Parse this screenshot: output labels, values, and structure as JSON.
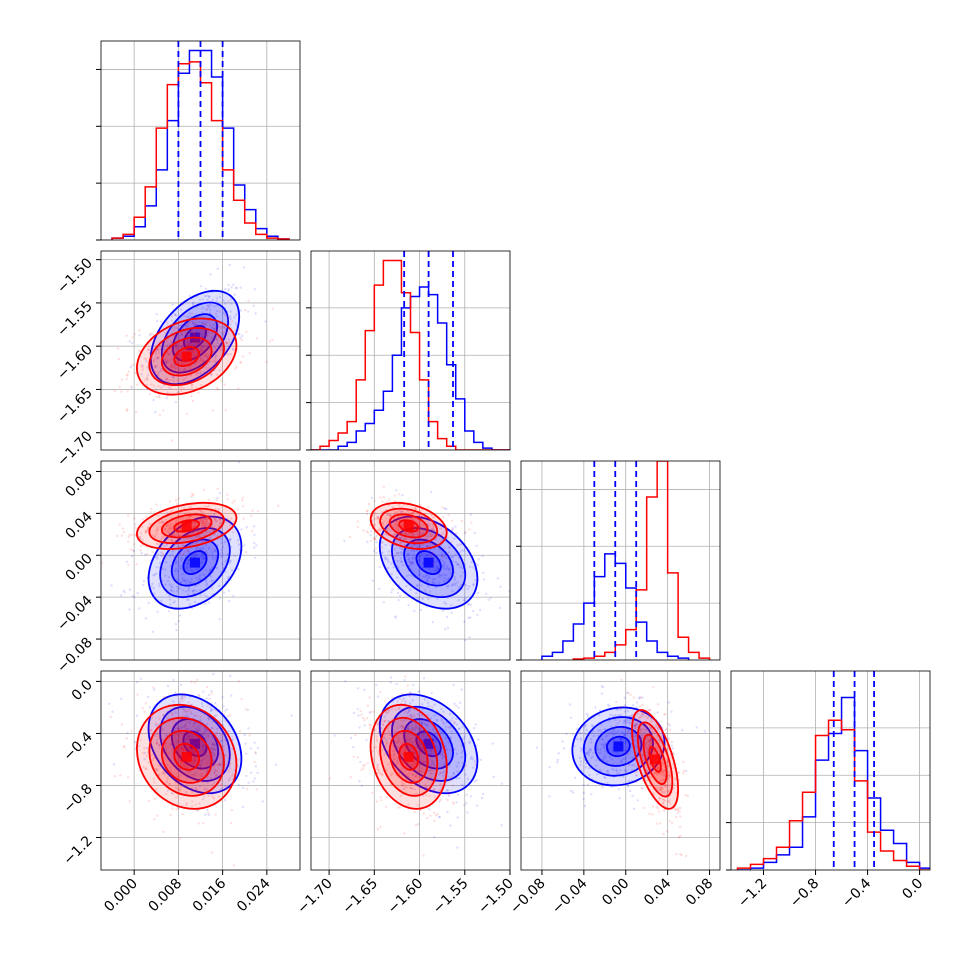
{
  "figure_type": "corner plot",
  "colors": {
    "series_a": "#0000ff",
    "series_b": "#ff0000",
    "grid": "#b0b0b0",
    "frame": "#000000"
  },
  "chart_data": [
    {
      "type": "histogram",
      "param": 0,
      "x_range": [
        -0.006,
        0.03
      ],
      "y_range": [
        0,
        1.05
      ],
      "grid": true,
      "y_ticks": [
        0.0,
        0.3,
        0.6,
        0.9
      ],
      "quantiles": {
        "series": "blue",
        "values": [
          0.008,
          0.012,
          0.016
        ]
      },
      "series": [
        {
          "color": "blue",
          "bins": [
            -0.004,
            -0.002,
            0.0,
            0.002,
            0.004,
            0.006,
            0.008,
            0.01,
            0.012,
            0.014,
            0.016,
            0.018,
            0.02,
            0.022,
            0.024,
            0.026,
            0.028
          ],
          "counts": [
            0.01,
            0.02,
            0.07,
            0.18,
            0.37,
            0.63,
            0.88,
            1.0,
            1.0,
            0.86,
            0.59,
            0.29,
            0.16,
            0.06,
            0.02,
            0.005
          ]
        },
        {
          "color": "red",
          "bins": [
            -0.004,
            -0.002,
            0.0,
            0.002,
            0.004,
            0.006,
            0.008,
            0.01,
            0.012,
            0.014,
            0.016,
            0.018,
            0.02,
            0.022,
            0.024,
            0.026,
            0.028
          ],
          "counts": [
            0.01,
            0.03,
            0.12,
            0.28,
            0.59,
            0.82,
            0.93,
            0.94,
            0.83,
            0.63,
            0.37,
            0.21,
            0.09,
            0.03,
            0.01,
            0.005
          ]
        }
      ]
    },
    {
      "type": "histogram",
      "param": 1,
      "x_range": [
        -1.72,
        -1.5
      ],
      "y_range": [
        0,
        1.05
      ],
      "grid": true,
      "y_ticks": [
        0.0,
        0.25,
        0.5,
        0.75
      ],
      "quantiles": {
        "series": "blue",
        "values": [
          -1.617,
          -1.59,
          -1.563
        ]
      },
      "series": [
        {
          "color": "blue",
          "bins": [
            -1.72,
            -1.71,
            -1.7,
            -1.69,
            -1.68,
            -1.67,
            -1.66,
            -1.65,
            -1.64,
            -1.63,
            -1.62,
            -1.61,
            -1.6,
            -1.59,
            -1.58,
            -1.57,
            -1.56,
            -1.55,
            -1.54,
            -1.53,
            -1.52,
            -1.51,
            -1.5
          ],
          "counts": [
            0.0,
            0.0,
            0.0,
            0.02,
            0.04,
            0.1,
            0.14,
            0.21,
            0.31,
            0.5,
            0.75,
            0.81,
            0.86,
            0.82,
            0.67,
            0.45,
            0.27,
            0.1,
            0.04,
            0.01,
            0.0,
            0.0
          ]
        },
        {
          "color": "red",
          "bins": [
            -1.72,
            -1.71,
            -1.7,
            -1.69,
            -1.68,
            -1.67,
            -1.66,
            -1.65,
            -1.64,
            -1.63,
            -1.62,
            -1.61,
            -1.6,
            -1.59,
            -1.58,
            -1.57,
            -1.56,
            -1.55,
            -1.54,
            -1.53,
            -1.52,
            -1.51,
            -1.5
          ],
          "counts": [
            0.0,
            0.02,
            0.05,
            0.09,
            0.15,
            0.37,
            0.63,
            0.87,
            1.0,
            1.0,
            0.83,
            0.62,
            0.37,
            0.15,
            0.06,
            0.02,
            0.0,
            0.0,
            0.0,
            0.0,
            0.0,
            0.0
          ]
        }
      ]
    },
    {
      "type": "histogram",
      "param": 2,
      "x_range": [
        -0.1,
        0.09
      ],
      "y_range": [
        0,
        1.05
      ],
      "grid": true,
      "y_ticks": [
        0.0,
        0.3,
        0.6,
        0.9
      ],
      "quantiles": {
        "series": "blue",
        "values": [
          -0.03,
          -0.01,
          0.01
        ]
      },
      "series": [
        {
          "color": "blue",
          "bins": [
            -0.08,
            -0.07,
            -0.06,
            -0.05,
            -0.04,
            -0.03,
            -0.02,
            -0.01,
            0.0,
            0.01,
            0.02,
            0.03,
            0.04,
            0.05,
            0.06
          ],
          "counts": [
            0.02,
            0.04,
            0.1,
            0.19,
            0.3,
            0.44,
            0.56,
            0.51,
            0.38,
            0.2,
            0.1,
            0.04,
            0.02,
            0.01
          ]
        },
        {
          "color": "red",
          "bins": [
            -0.05,
            -0.04,
            -0.03,
            -0.02,
            -0.01,
            0.0,
            0.01,
            0.02,
            0.03,
            0.04,
            0.05,
            0.06,
            0.07,
            0.08
          ],
          "counts": [
            0.005,
            0.01,
            0.02,
            0.04,
            0.08,
            0.16,
            0.37,
            0.86,
            1.05,
            0.46,
            0.12,
            0.04,
            0.01
          ]
        }
      ]
    },
    {
      "type": "histogram",
      "param": 3,
      "x_range": [
        -1.45,
        0.08
      ],
      "y_range": [
        0,
        1.05
      ],
      "grid": true,
      "y_ticks": [
        0.0,
        0.25,
        0.5,
        0.75
      ],
      "quantiles": {
        "series": "blue",
        "values": [
          -0.66,
          -0.5,
          -0.35
        ]
      },
      "series": [
        {
          "color": "blue",
          "bins": [
            -1.4,
            -1.3,
            -1.2,
            -1.1,
            -1.0,
            -0.9,
            -0.8,
            -0.7,
            -0.6,
            -0.5,
            -0.4,
            -0.3,
            -0.2,
            -0.1,
            0.0,
            0.1
          ],
          "counts": [
            0.0,
            0.01,
            0.04,
            0.08,
            0.12,
            0.28,
            0.58,
            0.72,
            0.91,
            0.63,
            0.38,
            0.21,
            0.14,
            0.04,
            0.01
          ]
        },
        {
          "color": "red",
          "bins": [
            -1.4,
            -1.3,
            -1.2,
            -1.1,
            -1.0,
            -0.9,
            -0.8,
            -0.7,
            -0.6,
            -0.5,
            -0.4,
            -0.3,
            -0.2,
            -0.1,
            0.0,
            0.1
          ],
          "counts": [
            0.01,
            0.03,
            0.06,
            0.12,
            0.26,
            0.41,
            0.71,
            0.79,
            0.74,
            0.47,
            0.2,
            0.1,
            0.05,
            0.02,
            0.0
          ]
        }
      ]
    },
    {
      "type": "scatter-contour",
      "x_param": 0,
      "y_param": 1,
      "x_range": [
        -0.006,
        0.03
      ],
      "y_range": [
        -1.72,
        -1.49
      ],
      "grid": true,
      "series": [
        {
          "color": "blue",
          "center": [
            0.011,
            -1.59
          ],
          "sd": [
            0.004,
            0.027
          ],
          "corr": 0.45
        },
        {
          "color": "red",
          "center": [
            0.0095,
            -1.612
          ],
          "sd": [
            0.0045,
            0.022
          ],
          "corr": 0.3
        }
      ]
    },
    {
      "type": "scatter-contour",
      "x_param": 0,
      "y_param": 2,
      "x_range": [
        -0.006,
        0.03
      ],
      "y_range": [
        -0.1,
        0.09
      ],
      "grid": true,
      "series": [
        {
          "color": "blue",
          "center": [
            0.011,
            -0.007
          ],
          "sd": [
            0.0042,
            0.022
          ],
          "corr": 0.35
        },
        {
          "color": "red",
          "center": [
            0.0095,
            0.028
          ],
          "sd": [
            0.0045,
            0.011
          ],
          "corr": 0.35
        }
      ]
    },
    {
      "type": "scatter-contour",
      "x_param": 1,
      "y_param": 2,
      "x_range": [
        -1.72,
        -1.5
      ],
      "y_range": [
        -0.1,
        0.09
      ],
      "grid": true,
      "series": [
        {
          "color": "blue",
          "center": [
            -1.59,
            -0.007
          ],
          "sd": [
            0.027,
            0.022
          ],
          "corr": -0.35
        },
        {
          "color": "red",
          "center": [
            -1.612,
            0.028
          ],
          "sd": [
            0.021,
            0.011
          ],
          "corr": -0.3
        }
      ]
    },
    {
      "type": "scatter-contour",
      "x_param": 0,
      "y_param": 3,
      "x_range": [
        -0.006,
        0.03
      ],
      "y_range": [
        -1.45,
        0.08
      ],
      "grid": true,
      "series": [
        {
          "color": "blue",
          "center": [
            0.011,
            -0.48
          ],
          "sd": [
            0.0042,
            0.19
          ],
          "corr": -0.3
        },
        {
          "color": "red",
          "center": [
            0.0095,
            -0.58
          ],
          "sd": [
            0.0045,
            0.2
          ],
          "corr": -0.15
        }
      ]
    },
    {
      "type": "scatter-contour",
      "x_param": 1,
      "y_param": 3,
      "x_range": [
        -1.72,
        -1.5
      ],
      "y_range": [
        -1.45,
        0.08
      ],
      "grid": true,
      "series": [
        {
          "color": "blue",
          "center": [
            -1.59,
            -0.48
          ],
          "sd": [
            0.027,
            0.19
          ],
          "corr": -0.35
        },
        {
          "color": "red",
          "center": [
            -1.612,
            -0.58
          ],
          "sd": [
            0.021,
            0.2
          ],
          "corr": -0.2
        }
      ]
    },
    {
      "type": "scatter-contour",
      "x_param": 2,
      "y_param": 3,
      "x_range": [
        -0.1,
        0.09
      ],
      "y_range": [
        -1.45,
        0.08
      ],
      "grid": true,
      "series": [
        {
          "color": "blue",
          "center": [
            -0.007,
            -0.5
          ],
          "sd": [
            0.022,
            0.15
          ],
          "corr": 0.1
        },
        {
          "color": "red",
          "center": [
            0.028,
            -0.6
          ],
          "sd": [
            0.011,
            0.19
          ],
          "corr": -0.6
        }
      ]
    }
  ],
  "axes": {
    "x_ticks": [
      [
        "0.000",
        "0.008",
        "0.016",
        "0.024"
      ],
      [
        "−1.70",
        "−1.65",
        "−1.60",
        "−1.55",
        "−1.50"
      ],
      [
        "−0.08",
        "−0.04",
        "0.00",
        "0.04",
        "0.08"
      ],
      [
        "−1.2",
        "−0.8",
        "−0.4",
        "0.0"
      ]
    ],
    "x_tick_values": [
      [
        0.0,
        0.008,
        0.016,
        0.024
      ],
      [
        -1.7,
        -1.65,
        -1.6,
        -1.55,
        -1.5
      ],
      [
        -0.08,
        -0.04,
        0.0,
        0.04,
        0.08
      ],
      [
        -1.2,
        -0.8,
        -0.4,
        0.0
      ]
    ],
    "y_ticks": [
      [],
      [
        "−1.50",
        "−1.55",
        "−1.60",
        "−1.65",
        "−1.70"
      ],
      [
        "0.08",
        "0.04",
        "0.00",
        "−0.04",
        "−0.08"
      ],
      [
        "0.0",
        "−0.4",
        "−0.8",
        "−1.2"
      ]
    ],
    "y_tick_values": [
      [],
      [
        -1.5,
        -1.55,
        -1.6,
        -1.65,
        -1.7
      ],
      [
        0.08,
        0.04,
        0.0,
        -0.04,
        -0.08
      ],
      [
        0.0,
        -0.4,
        -0.8,
        -1.2
      ]
    ]
  }
}
